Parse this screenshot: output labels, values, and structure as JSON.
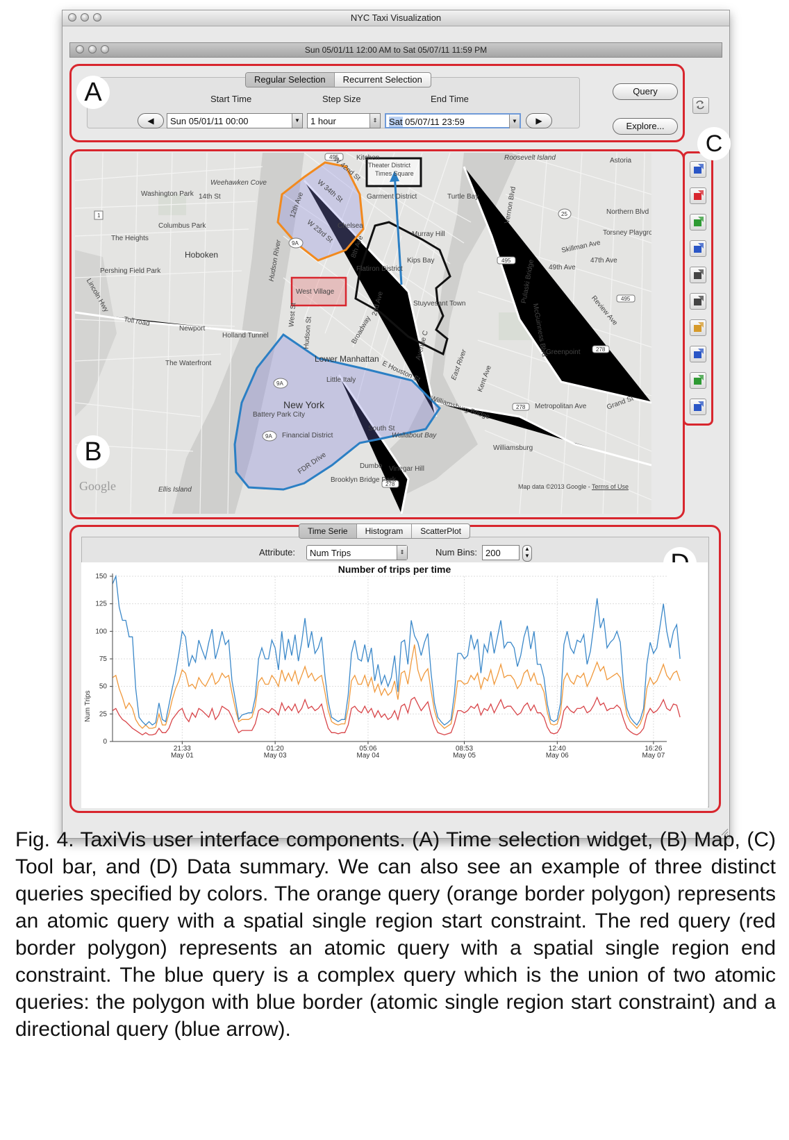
{
  "window": {
    "title": "NYC Taxi Visualization"
  },
  "inner_window": {
    "title": "Sun 05/01/11 12:00 AM to Sat 05/07/11 11:59 PM"
  },
  "time_widget": {
    "label": "A",
    "tabs": [
      {
        "label": "Regular Selection",
        "active": true
      },
      {
        "label": "Recurrent Selection",
        "active": false
      }
    ],
    "start_time_label": "Start Time",
    "step_size_label": "Step Size",
    "end_time_label": "End Time",
    "start_time_value": "Sun 05/01/11 00:00",
    "step_size_value": "1 hour",
    "end_time_day": "Sat",
    "end_time_rest": " 05/07/11 23:59",
    "prev_button": "◀",
    "next_button": "▶",
    "query_button": "Query",
    "explore_button": "Explore...",
    "refresh_icon": "refresh-icon"
  },
  "map": {
    "label": "B",
    "attribution": "Map data ©2013 Google - ",
    "terms_link": "Terms of Use",
    "logo": "Google",
    "region_labels": {
      "theater_district": "Theater District",
      "times_square": "Times Square",
      "west_village": "West Village"
    },
    "places": [
      "Kitchen",
      "Roosevelt Island",
      "Astoria",
      "Washington Park",
      "14th St",
      "Weehawken Cove",
      "Garment District",
      "Turtle Bay",
      "Northern Blvd",
      "Columbus Park",
      "The Heights",
      "Chelsea",
      "Murray Hill",
      "Torsney Playground",
      "Hoboken",
      "Hudson River",
      "Skillman Ave",
      "Pershing Field Park",
      "Kips Bay",
      "47th Ave",
      "49th Ave",
      "Flatiron District",
      "Stuyvesant Town",
      "Newport",
      "Holland Tunnel",
      "The Waterfront",
      "Lower Manhattan",
      "Little Italy",
      "Greenpoint",
      "E Houston St",
      "New York",
      "Battery Park City",
      "Financial District",
      "FDR Drive",
      "South St",
      "Williamsburg Bridge",
      "Metropolitan Ave",
      "Wallabout Bay",
      "Williamsburg",
      "Dumbo",
      "Vinegar Hill",
      "Brooklyn Bridge Park",
      "Ellis Island",
      "East River",
      "Grand St",
      "Broadway",
      "W 34th St",
      "W 23rd St",
      "W 42nd St",
      "8th Ave",
      "12th Ave",
      "Lincoln Hwy",
      "Toll road",
      "Kent Ave",
      "McGuinness Blvd",
      "Review Ave",
      "West St",
      "Hudson St",
      "2nd Ave",
      "Avenue C",
      "Vernon Blvd",
      "Pulaski Bridge"
    ],
    "shields": [
      "495",
      "9A",
      "278",
      "25",
      "1"
    ]
  },
  "toolbar": {
    "label": "C",
    "tools": [
      {
        "name": "select-start-region-tool",
        "icon": "start-region-icon",
        "color": "#2a56c6"
      },
      {
        "name": "select-end-region-tool",
        "icon": "end-region-icon",
        "color": "#d8262e"
      },
      {
        "name": "directional-query-tool",
        "icon": "direction-arrow-icon",
        "color": "#2e9a33"
      },
      {
        "name": "start-end-region-tool",
        "icon": "start-end-region-icon",
        "color": "#2a56c6"
      },
      {
        "name": "union-query-tool",
        "icon": "union-icon",
        "color": "#444444"
      },
      {
        "name": "intersection-query-tool",
        "icon": "intersection-icon",
        "color": "#444444"
      },
      {
        "name": "heatmap-tool",
        "icon": "heatmap-icon",
        "color": "#d69a2a"
      },
      {
        "name": "points-tool",
        "icon": "points-icon",
        "color": "#2a56c6"
      },
      {
        "name": "export-tool",
        "icon": "export-icon",
        "color": "#2e9a33"
      },
      {
        "name": "table-tool",
        "icon": "table-icon",
        "color": "#2a56c6"
      }
    ]
  },
  "summary": {
    "label": "D",
    "tabs": [
      {
        "label": "Time Serie",
        "active": true
      },
      {
        "label": "Histogram",
        "active": false
      },
      {
        "label": "ScatterPlot",
        "active": false
      }
    ],
    "attribute_label": "Attribute:",
    "attribute_value": "Num Trips",
    "num_bins_label": "Num Bins:",
    "num_bins_value": "200"
  },
  "colors": {
    "highlight_red": "#d8262e",
    "orange_query": "#f28a1e",
    "blue_query": "#2b7fc4",
    "black_query": "#111111",
    "blue_fill": "rgba(120,120,220,0.28)",
    "orange_fill": "rgba(140,140,230,0.30)"
  },
  "chart_data": {
    "type": "line",
    "title": "Number of trips per time",
    "xlabel": "",
    "ylabel": "Num Trips",
    "ylim": [
      0,
      150
    ],
    "yticks": [
      0,
      25,
      50,
      75,
      100,
      125,
      150
    ],
    "xticks": [
      {
        "time": "21:33",
        "date": "May 01",
        "index": 21
      },
      {
        "time": "01:20",
        "date": "May 03",
        "index": 49
      },
      {
        "time": "05:06",
        "date": "May 04",
        "index": 77
      },
      {
        "time": "08:53",
        "date": "May 05",
        "index": 106
      },
      {
        "time": "12:40",
        "date": "May 06",
        "index": 134
      },
      {
        "time": "16:26",
        "date": "May 07",
        "index": 163
      }
    ],
    "x_count": 168,
    "grid": true,
    "series": [
      {
        "name": "",
        "color": "#3b88c9",
        "values": [
          143,
          150,
          122,
          110,
          110,
          95,
          95,
          48,
          22,
          18,
          15,
          18,
          15,
          17,
          35,
          20,
          18,
          33,
          48,
          62,
          80,
          100,
          95,
          68,
          78,
          72,
          92,
          83,
          75,
          90,
          102,
          75,
          86,
          100,
          88,
          92,
          55,
          38,
          20,
          24,
          25,
          26,
          26,
          40,
          75,
          85,
          75,
          75,
          92,
          85,
          65,
          100,
          74,
          93,
          78,
          97,
          73,
          90,
          112,
          85,
          100,
          80,
          85,
          95,
          60,
          36,
          22,
          20,
          18,
          20,
          20,
          42,
          80,
          92,
          75,
          73,
          88,
          72,
          85,
          55,
          70,
          52,
          60,
          50,
          58,
          78,
          45,
          90,
          92,
          70,
          110,
          96,
          90,
          78,
          90,
          98,
          62,
          35,
          22,
          18,
          15,
          17,
          20,
          43,
          80,
          80,
          75,
          78,
          97,
          84,
          93,
          62,
          88,
          81,
          100,
          80,
          95,
          110,
          85,
          90,
          90,
          85,
          68,
          78,
          95,
          105,
          84,
          100,
          70,
          70,
          58,
          34,
          20,
          18,
          20,
          35,
          88,
          100,
          85,
          80,
          92,
          90,
          97,
          70,
          82,
          105,
          130,
          103,
          112,
          85,
          90,
          93,
          100,
          90,
          50,
          30,
          22,
          18,
          15,
          20,
          30,
          70,
          90,
          80,
          85,
          105,
          125,
          100,
          85,
          100,
          106,
          75
        ]
      },
      {
        "name": "",
        "color": "#f0993c",
        "values": [
          58,
          60,
          48,
          40,
          30,
          35,
          30,
          20,
          15,
          12,
          15,
          12,
          12,
          13,
          25,
          15,
          15,
          25,
          38,
          48,
          55,
          65,
          62,
          50,
          52,
          48,
          58,
          53,
          50,
          56,
          62,
          52,
          55,
          62,
          58,
          60,
          44,
          30,
          18,
          20,
          20,
          20,
          22,
          32,
          54,
          58,
          52,
          52,
          60,
          56,
          50,
          65,
          55,
          62,
          55,
          64,
          52,
          60,
          68,
          58,
          62,
          55,
          58,
          60,
          45,
          28,
          18,
          16,
          15,
          16,
          16,
          30,
          55,
          60,
          52,
          52,
          60,
          50,
          58,
          45,
          52,
          42,
          48,
          42,
          45,
          55,
          38,
          62,
          64,
          52,
          72,
          88,
          65,
          55,
          62,
          66,
          46,
          28,
          18,
          15,
          12,
          14,
          16,
          32,
          55,
          55,
          52,
          53,
          60,
          56,
          62,
          48,
          58,
          55,
          65,
          52,
          60,
          70,
          58,
          60,
          60,
          56,
          48,
          52,
          62,
          65,
          55,
          62,
          52,
          52,
          45,
          27,
          16,
          15,
          16,
          26,
          56,
          62,
          55,
          52,
          60,
          58,
          62,
          50,
          56,
          64,
          72,
          64,
          68,
          56,
          58,
          60,
          62,
          58,
          40,
          24,
          18,
          15,
          12,
          16,
          24,
          48,
          58,
          52,
          55,
          62,
          70,
          60,
          56,
          62,
          64,
          55
        ]
      },
      {
        "name": "",
        "color": "#d84549",
        "values": [
          28,
          30,
          24,
          20,
          18,
          15,
          12,
          10,
          8,
          6,
          8,
          6,
          6,
          7,
          12,
          8,
          8,
          12,
          20,
          24,
          28,
          30,
          22,
          18,
          26,
          22,
          30,
          28,
          25,
          22,
          30,
          20,
          24,
          32,
          30,
          28,
          22,
          14,
          8,
          10,
          10,
          10,
          10,
          16,
          28,
          30,
          28,
          26,
          30,
          28,
          24,
          35,
          28,
          32,
          28,
          34,
          26,
          30,
          38,
          30,
          32,
          28,
          30,
          34,
          22,
          12,
          8,
          8,
          7,
          8,
          8,
          15,
          30,
          32,
          28,
          26,
          32,
          26,
          30,
          22,
          28,
          22,
          25,
          20,
          22,
          28,
          20,
          32,
          34,
          26,
          38,
          40,
          34,
          28,
          32,
          36,
          24,
          14,
          8,
          7,
          6,
          7,
          8,
          16,
          28,
          28,
          26,
          28,
          32,
          30,
          34,
          24,
          30,
          28,
          34,
          26,
          32,
          38,
          30,
          32,
          32,
          28,
          24,
          26,
          32,
          35,
          28,
          33,
          26,
          26,
          22,
          13,
          8,
          7,
          8,
          13,
          28,
          32,
          28,
          26,
          30,
          30,
          32,
          26,
          28,
          33,
          40,
          33,
          35,
          28,
          30,
          30,
          33,
          30,
          20,
          12,
          9,
          7,
          6,
          8,
          12,
          24,
          30,
          26,
          28,
          32,
          38,
          30,
          28,
          34,
          33,
          22
        ]
      }
    ]
  },
  "caption": "Fig. 4.  TaxiVis user interface components.  (A) Time selection widget, (B) Map, (C) Tool bar, and (D) Data summary.  We can also see an example of three distinct queries specified by colors.  The orange query (orange border polygon) represents an atomic query with a spatial single region start constraint.  The red query (red border polygon) represents an atomic query with a spatial single region end constraint.  The blue query is a complex query which is the union of two atomic queries: the polygon with blue border (atomic single region start constraint) and a directional query (blue arrow)."
}
